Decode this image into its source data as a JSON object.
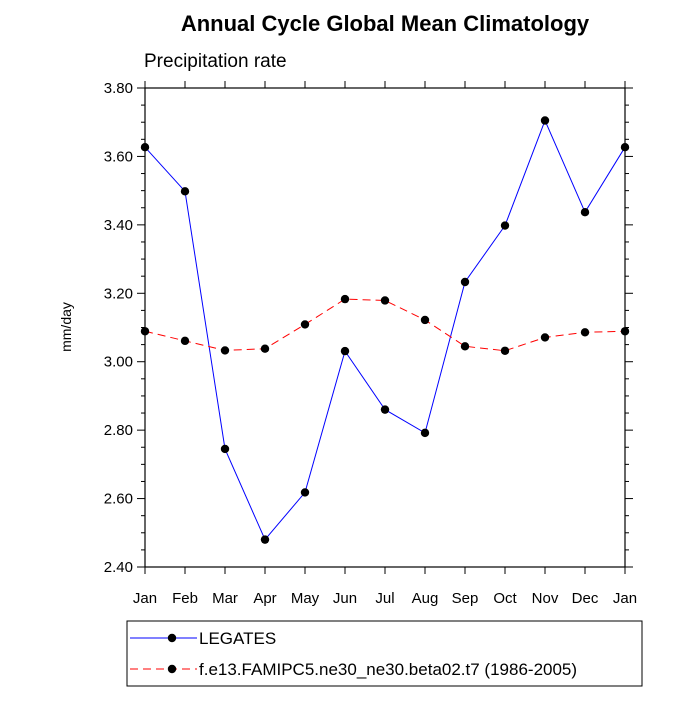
{
  "chart_data": {
    "type": "line",
    "title": "Annual Cycle Global Mean Climatology",
    "subtitle": "Precipitation rate",
    "xlabel": "",
    "ylabel": "mm/day",
    "categories": [
      "Jan",
      "Feb",
      "Mar",
      "Apr",
      "May",
      "Jun",
      "Jul",
      "Aug",
      "Sep",
      "Oct",
      "Nov",
      "Dec",
      "Jan"
    ],
    "ylim": [
      2.4,
      3.8
    ],
    "yticks": [
      "2.40",
      "2.60",
      "2.80",
      "3.00",
      "3.20",
      "3.40",
      "3.60",
      "3.80"
    ],
    "grid": false,
    "legend_position": "bottom",
    "series": [
      {
        "name": "LEGATES",
        "color": "#0000ff",
        "line_style": "solid",
        "marker": "filled-circle",
        "values": [
          3.627,
          3.498,
          2.745,
          2.48,
          2.618,
          3.031,
          2.86,
          2.792,
          3.233,
          3.398,
          3.705,
          3.437,
          3.627
        ]
      },
      {
        "name": "f.e13.FAMIPC5.ne30_ne30.beta02.t7 (1986-2005)",
        "color": "#ff0000",
        "line_style": "dashed",
        "marker": "filled-circle",
        "values": [
          3.089,
          3.061,
          3.033,
          3.038,
          3.109,
          3.183,
          3.179,
          3.122,
          3.045,
          3.032,
          3.071,
          3.086,
          3.089
        ]
      }
    ]
  }
}
